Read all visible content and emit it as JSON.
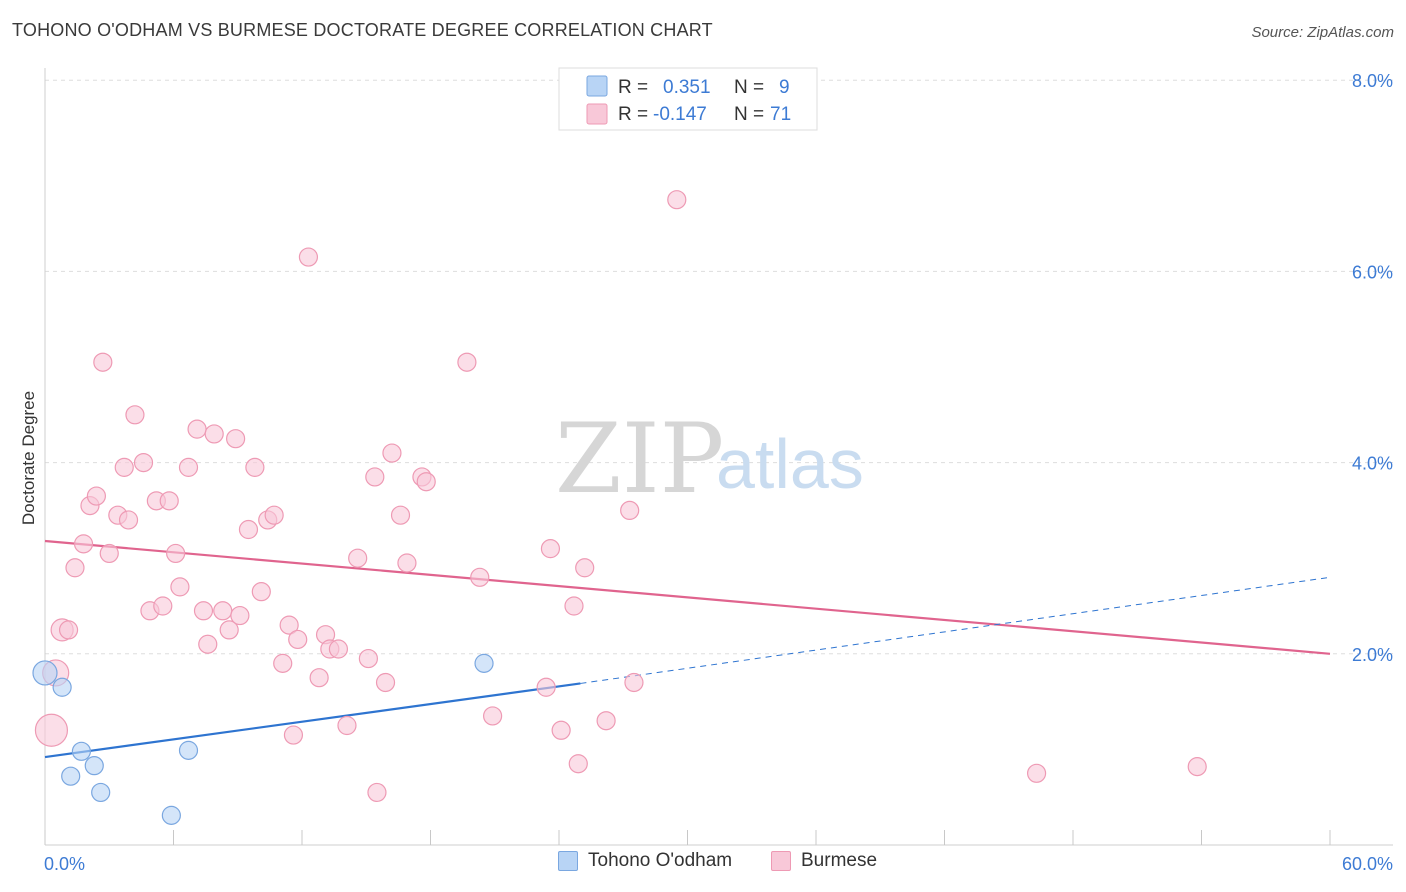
{
  "header": {
    "title": "TOHONO O'ODHAM VS BURMESE DOCTORATE DEGREE CORRELATION CHART",
    "source": "Source: ZipAtlas.com"
  },
  "watermark": {
    "zip": "ZIP",
    "atlas": "atlas"
  },
  "colors": {
    "blue_fill": "#b8d4f5",
    "blue_stroke": "#7aa7e0",
    "blue_line": "#2e74d0",
    "pink_fill": "#f8c8d8",
    "pink_stroke": "#ee9ab4",
    "pink_line": "#e0648e",
    "tick_label": "#3d7bd4",
    "grid": "#dddddd"
  },
  "chart_data": {
    "type": "scatter",
    "xlabel": "",
    "ylabel": "Doctorate Degree",
    "xlim": [
      0,
      60
    ],
    "ylim": [
      0,
      8
    ],
    "x_tick_labels": [
      "0.0%",
      "60.0%"
    ],
    "y_ticks": [
      2,
      4,
      6,
      8
    ],
    "y_tick_labels": [
      "2.0%",
      "4.0%",
      "6.0%",
      "8.0%"
    ],
    "grid": "horizontal dashed",
    "legend_top": [
      {
        "r_label": "R =",
        "r_value": "0.351",
        "n_label": "N =",
        "n_value": "9"
      },
      {
        "r_label": "R =",
        "r_value": "-0.147",
        "n_label": "N =",
        "n_value": "71"
      }
    ],
    "series": [
      {
        "name": "Tohono O'odham",
        "color": "#b8d4f5",
        "points": [
          {
            "x": 0.0,
            "y": 1.8,
            "s": 12
          },
          {
            "x": 0.8,
            "y": 1.65,
            "s": 9
          },
          {
            "x": 1.2,
            "y": 0.72,
            "s": 9
          },
          {
            "x": 1.7,
            "y": 0.98,
            "s": 9
          },
          {
            "x": 2.3,
            "y": 0.83,
            "s": 9
          },
          {
            "x": 2.6,
            "y": 0.55,
            "s": 9
          },
          {
            "x": 5.9,
            "y": 0.31,
            "s": 9
          },
          {
            "x": 6.7,
            "y": 0.99,
            "s": 9
          },
          {
            "x": 20.5,
            "y": 1.9,
            "s": 9
          }
        ],
        "trend": {
          "x0": 0,
          "y0": 0.92,
          "x1": 25.0,
          "y1": 1.69,
          "dash_x1": 60,
          "dash_y1": 2.8
        }
      },
      {
        "name": "Burmese",
        "color": "#f8c8d8",
        "points": [
          {
            "x": 0.3,
            "y": 1.2,
            "s": 16
          },
          {
            "x": 0.5,
            "y": 1.8,
            "s": 13
          },
          {
            "x": 0.8,
            "y": 2.25,
            "s": 11
          },
          {
            "x": 1.1,
            "y": 2.25,
            "s": 9
          },
          {
            "x": 1.4,
            "y": 2.9,
            "s": 9
          },
          {
            "x": 1.8,
            "y": 3.15,
            "s": 9
          },
          {
            "x": 2.1,
            "y": 3.55,
            "s": 9
          },
          {
            "x": 2.4,
            "y": 3.65,
            "s": 9
          },
          {
            "x": 2.7,
            "y": 5.05,
            "s": 9
          },
          {
            "x": 3.0,
            "y": 3.05,
            "s": 9
          },
          {
            "x": 3.4,
            "y": 3.45,
            "s": 9
          },
          {
            "x": 3.7,
            "y": 3.95,
            "s": 9
          },
          {
            "x": 3.9,
            "y": 3.4,
            "s": 9
          },
          {
            "x": 4.2,
            "y": 4.5,
            "s": 9
          },
          {
            "x": 4.6,
            "y": 4.0,
            "s": 9
          },
          {
            "x": 4.9,
            "y": 2.45,
            "s": 9
          },
          {
            "x": 5.2,
            "y": 3.6,
            "s": 9
          },
          {
            "x": 5.5,
            "y": 2.5,
            "s": 9
          },
          {
            "x": 5.8,
            "y": 3.6,
            "s": 9
          },
          {
            "x": 6.1,
            "y": 3.05,
            "s": 9
          },
          {
            "x": 6.3,
            "y": 2.7,
            "s": 9
          },
          {
            "x": 6.7,
            "y": 3.95,
            "s": 9
          },
          {
            "x": 7.1,
            "y": 4.35,
            "s": 9
          },
          {
            "x": 7.4,
            "y": 2.45,
            "s": 9
          },
          {
            "x": 7.6,
            "y": 2.1,
            "s": 9
          },
          {
            "x": 7.9,
            "y": 4.3,
            "s": 9
          },
          {
            "x": 8.3,
            "y": 2.45,
            "s": 9
          },
          {
            "x": 8.6,
            "y": 2.25,
            "s": 9
          },
          {
            "x": 8.9,
            "y": 4.25,
            "s": 9
          },
          {
            "x": 9.1,
            "y": 2.4,
            "s": 9
          },
          {
            "x": 9.5,
            "y": 3.3,
            "s": 9
          },
          {
            "x": 9.8,
            "y": 3.95,
            "s": 9
          },
          {
            "x": 10.1,
            "y": 2.65,
            "s": 9
          },
          {
            "x": 10.4,
            "y": 3.4,
            "s": 9
          },
          {
            "x": 10.7,
            "y": 3.45,
            "s": 9
          },
          {
            "x": 11.1,
            "y": 1.9,
            "s": 9
          },
          {
            "x": 11.4,
            "y": 2.3,
            "s": 9
          },
          {
            "x": 11.6,
            "y": 1.15,
            "s": 9
          },
          {
            "x": 11.8,
            "y": 2.15,
            "s": 9
          },
          {
            "x": 12.3,
            "y": 6.15,
            "s": 9
          },
          {
            "x": 12.8,
            "y": 1.75,
            "s": 9
          },
          {
            "x": 13.1,
            "y": 2.2,
            "s": 9
          },
          {
            "x": 13.3,
            "y": 2.05,
            "s": 9
          },
          {
            "x": 13.7,
            "y": 2.05,
            "s": 9
          },
          {
            "x": 14.1,
            "y": 1.25,
            "s": 9
          },
          {
            "x": 14.6,
            "y": 3.0,
            "s": 9
          },
          {
            "x": 15.1,
            "y": 1.95,
            "s": 9
          },
          {
            "x": 15.4,
            "y": 3.85,
            "s": 9
          },
          {
            "x": 15.5,
            "y": 0.55,
            "s": 9
          },
          {
            "x": 15.9,
            "y": 1.7,
            "s": 9
          },
          {
            "x": 16.2,
            "y": 4.1,
            "s": 9
          },
          {
            "x": 16.6,
            "y": 3.45,
            "s": 9
          },
          {
            "x": 16.9,
            "y": 2.95,
            "s": 9
          },
          {
            "x": 17.6,
            "y": 3.85,
            "s": 9
          },
          {
            "x": 17.8,
            "y": 3.8,
            "s": 9
          },
          {
            "x": 19.7,
            "y": 5.05,
            "s": 9
          },
          {
            "x": 20.3,
            "y": 2.8,
            "s": 9
          },
          {
            "x": 20.9,
            "y": 1.35,
            "s": 9
          },
          {
            "x": 23.4,
            "y": 1.65,
            "s": 9
          },
          {
            "x": 23.6,
            "y": 3.1,
            "s": 9
          },
          {
            "x": 24.1,
            "y": 1.2,
            "s": 9
          },
          {
            "x": 24.7,
            "y": 2.5,
            "s": 9
          },
          {
            "x": 24.9,
            "y": 0.85,
            "s": 9
          },
          {
            "x": 25.2,
            "y": 2.9,
            "s": 9
          },
          {
            "x": 26.2,
            "y": 1.3,
            "s": 9
          },
          {
            "x": 27.3,
            "y": 3.5,
            "s": 9
          },
          {
            "x": 27.5,
            "y": 1.7,
            "s": 9
          },
          {
            "x": 29.5,
            "y": 6.75,
            "s": 9
          },
          {
            "x": 31.7,
            "y": 7.7,
            "s": 9
          },
          {
            "x": 46.3,
            "y": 0.75,
            "s": 9
          },
          {
            "x": 53.8,
            "y": 0.82,
            "s": 9
          }
        ],
        "trend": {
          "x0": 0,
          "y0": 3.18,
          "x1": 60,
          "y1": 2.0
        }
      }
    ]
  }
}
